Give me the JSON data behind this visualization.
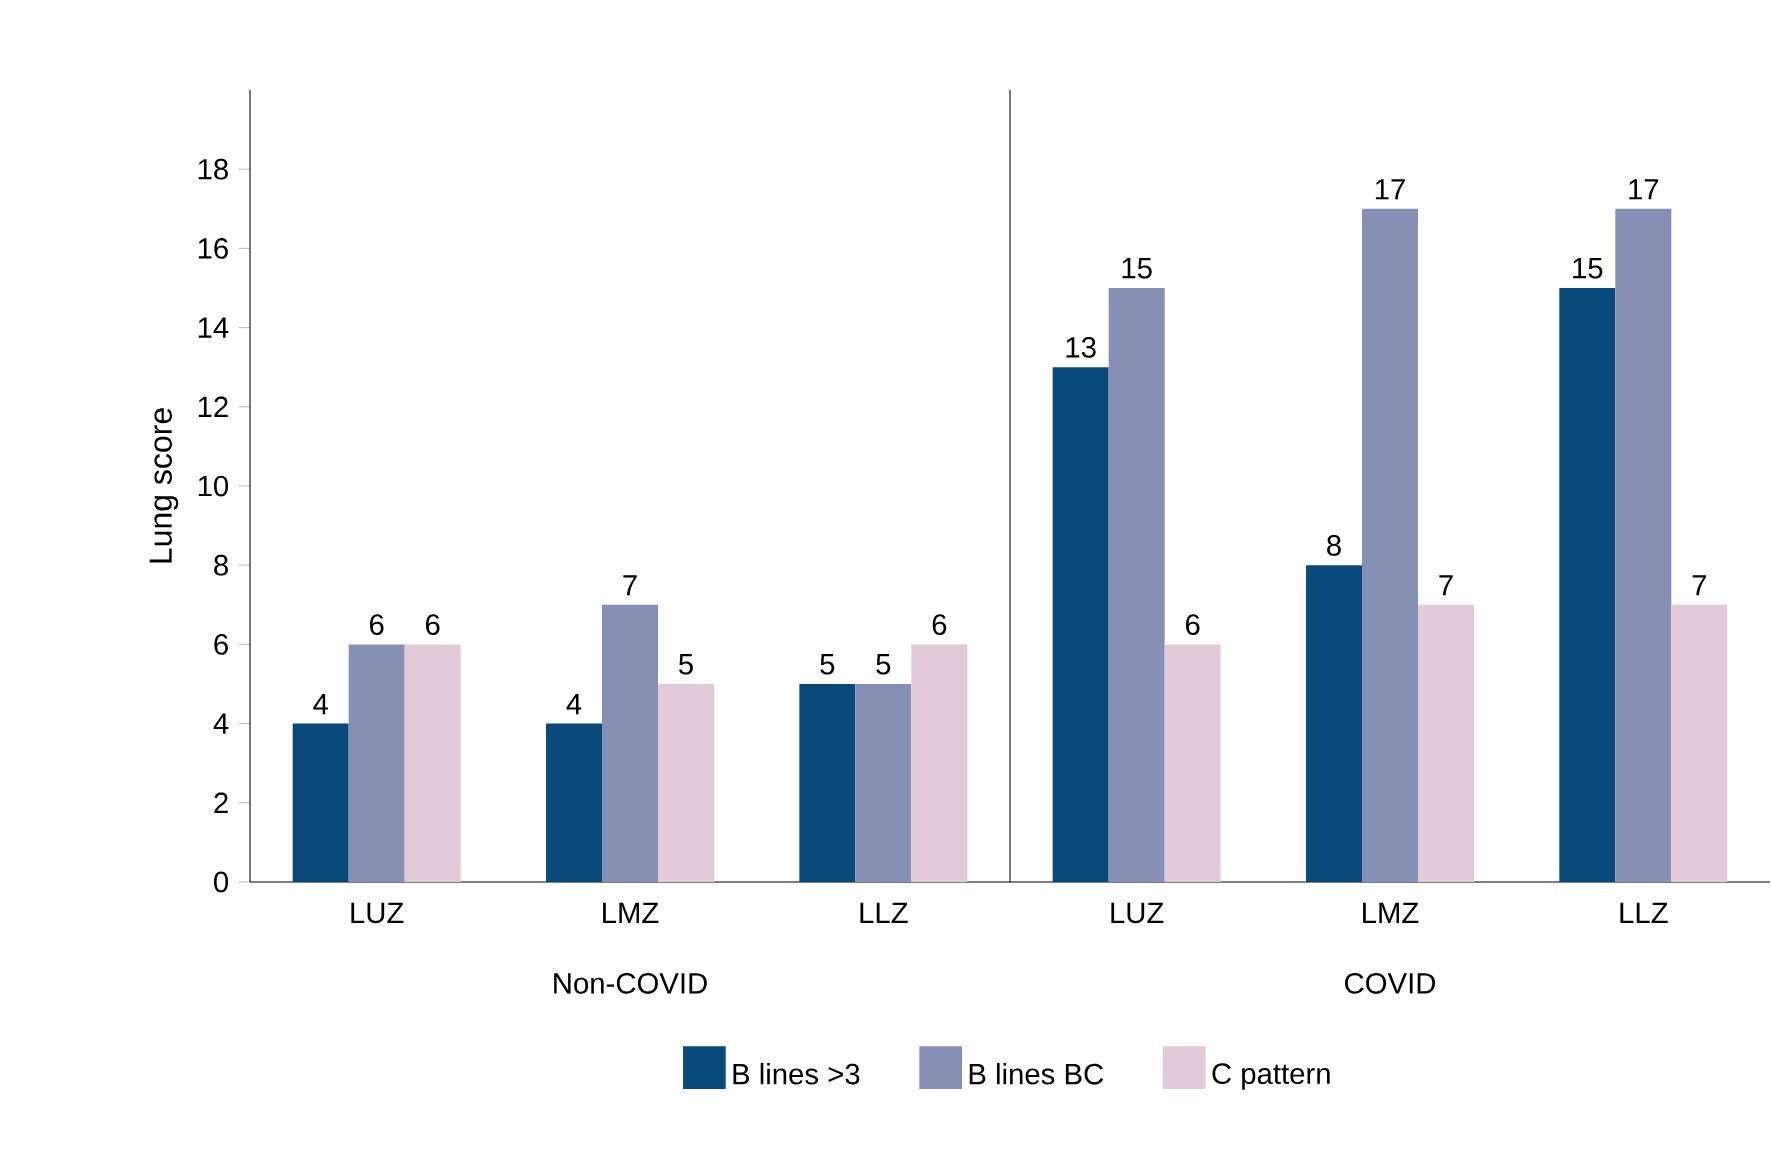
{
  "chart_data": {
    "type": "bar",
    "ylabel": "Lung score",
    "categories": [
      "LUZ",
      "LMZ",
      "LLZ",
      "LUZ",
      "LMZ",
      "LLZ"
    ],
    "series": [
      {
        "name": "B lines >3",
        "color": "#0a4a7a",
        "values": [
          4,
          4,
          5,
          13,
          8,
          15
        ]
      },
      {
        "name": "B lines BC",
        "color": "#8690b4",
        "values": [
          6,
          7,
          5,
          15,
          17,
          17
        ]
      },
      {
        "name": "C pattern",
        "color": "#e3cad9",
        "values": [
          6,
          5,
          6,
          6,
          7,
          7
        ]
      }
    ],
    "ylim": [
      0,
      20
    ],
    "yticks": [
      0,
      2,
      4,
      6,
      8,
      10,
      12,
      14,
      16,
      18
    ],
    "data_labels": true,
    "legend": "bottom",
    "annotations": [
      "Non-COVID",
      "COVID"
    ]
  }
}
